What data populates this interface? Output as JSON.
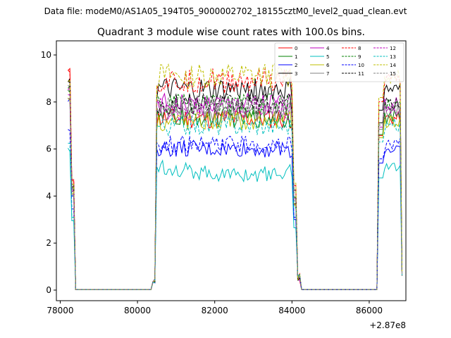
{
  "suptitle": "Data file: modeM0/AS1A05_194T05_9000002702_18155cztM0_level2_quad_clean.evt",
  "chart_data": {
    "type": "line",
    "title": "Quadrant 3 module wise count rates with 100.0s bins.",
    "xlabel": "",
    "ylabel": "",
    "x_offset_label": "+2.87e8",
    "xlim": [
      77900,
      86950
    ],
    "ylim": [
      -0.45,
      10.6
    ],
    "xticks": [
      78000,
      80000,
      82000,
      84000,
      86000
    ],
    "yticks": [
      0,
      2,
      4,
      6,
      8,
      10
    ],
    "grid": false,
    "legend_position": "top-right",
    "segments": [
      {
        "start": 78200,
        "end": 78400
      },
      {
        "start": 80400,
        "end": 80500
      },
      {
        "start": 80550,
        "end": 84000
      },
      {
        "start": 84100,
        "end": 84300
      },
      {
        "start": 86200,
        "end": 86300
      },
      {
        "start": 86350,
        "end": 86850
      }
    ],
    "series": [
      {
        "name": "0",
        "color": "#ff0000",
        "dash": "solid",
        "level": 7.3,
        "start": 9.3
      },
      {
        "name": "1",
        "color": "#008000",
        "dash": "solid",
        "level": 7.35,
        "start": 8.7
      },
      {
        "name": "2",
        "color": "#0000ff",
        "dash": "solid",
        "level": 6.0,
        "start": 8.0
      },
      {
        "name": "3",
        "color": "#000000",
        "dash": "solid",
        "level": 8.5,
        "start": 9.0
      },
      {
        "name": "4",
        "color": "#bf00bf",
        "dash": "solid",
        "level": 7.9,
        "start": 8.5
      },
      {
        "name": "5",
        "color": "#00bfbf",
        "dash": "solid",
        "level": 5.3,
        "start": 5.9
      },
      {
        "name": "6",
        "color": "#bfbf00",
        "dash": "solid",
        "level": 7.2,
        "start": 8.2
      },
      {
        "name": "7",
        "color": "#808080",
        "dash": "solid",
        "level": 7.6,
        "start": 8.6
      },
      {
        "name": "8",
        "color": "#ff0000",
        "dash": "dashed",
        "level": 8.9,
        "start": 9.4
      },
      {
        "name": "9",
        "color": "#008000",
        "dash": "dashed",
        "level": 7.9,
        "start": 8.4
      },
      {
        "name": "10",
        "color": "#0000ff",
        "dash": "dashed",
        "level": 6.2,
        "start": 6.9
      },
      {
        "name": "11",
        "color": "#000000",
        "dash": "dashed",
        "level": 7.9,
        "start": 8.8
      },
      {
        "name": "12",
        "color": "#bf00bf",
        "dash": "dashed",
        "level": 7.7,
        "start": 8.4
      },
      {
        "name": "13",
        "color": "#00bfbf",
        "dash": "dashed",
        "level": 7.0,
        "start": 6.2
      },
      {
        "name": "14",
        "color": "#bfbf00",
        "dash": "dashed",
        "level": 9.1,
        "start": 9.0
      },
      {
        "name": "15",
        "color": "#808080",
        "dash": "dashed",
        "level": 7.8,
        "start": 8.1
      }
    ]
  }
}
